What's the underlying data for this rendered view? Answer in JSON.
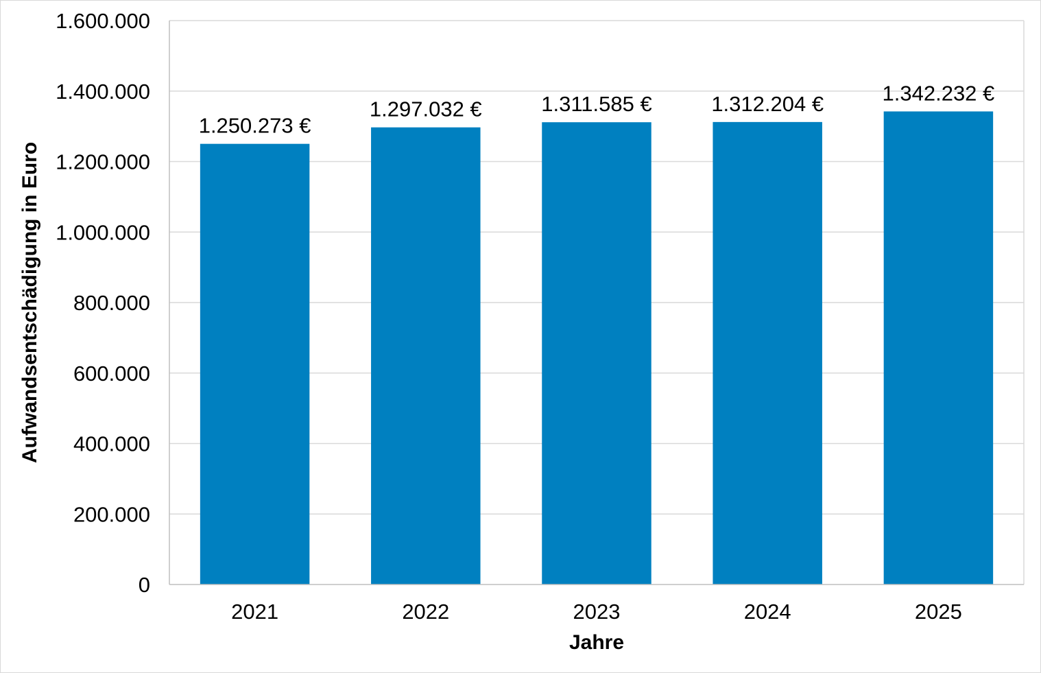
{
  "chart_data": {
    "type": "bar",
    "title": "",
    "xlabel": "Jahre",
    "ylabel": "Aufwandsentschädigung in Euro",
    "categories": [
      "2021",
      "2022",
      "2023",
      "2024",
      "2025"
    ],
    "values": [
      1250273,
      1297032,
      1311585,
      1312204,
      1342232
    ],
    "data_labels": [
      "1.250.273 €",
      "1.297.032 €",
      "1.311.585 €",
      "1.312.204 €",
      "1.342.232 €"
    ],
    "ylim": [
      0,
      1600000
    ],
    "yticks": [
      0,
      200000,
      400000,
      600000,
      800000,
      1000000,
      1200000,
      1400000,
      1600000
    ],
    "ytick_labels": [
      "0",
      "200.000",
      "400.000",
      "600.000",
      "800.000",
      "1.000.000",
      "1.200.000",
      "1.400.000",
      "1.600.000"
    ],
    "grid": true,
    "legend": "none",
    "colors": {
      "bar": "#0080c0",
      "grid": "#d9d9d9",
      "axis": "#bfbfbf"
    }
  }
}
